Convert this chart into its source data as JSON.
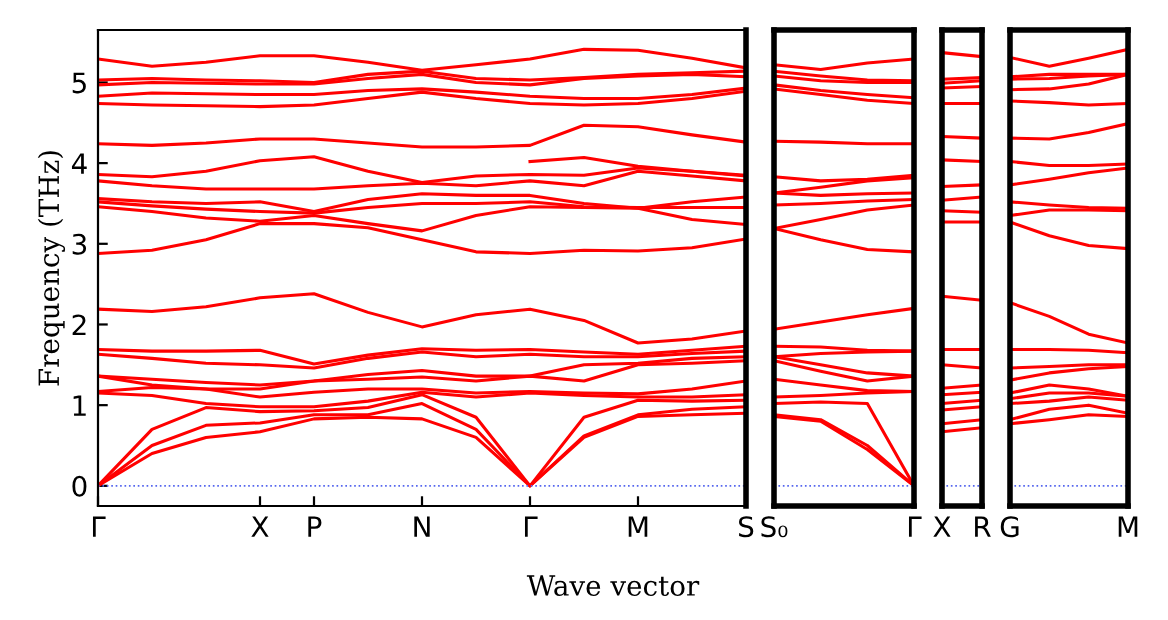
{
  "chart_data": [
    {
      "type": "line",
      "ylabel": "Frequency (THz)",
      "xlabel": "Wave vector",
      "ylim": [
        -0.25,
        5.65
      ],
      "yticks": [
        0,
        1,
        2,
        3,
        4,
        5
      ],
      "categories": [
        "Γ",
        null,
        null,
        "X",
        "P",
        null,
        "N",
        null,
        "Γ",
        null,
        "M",
        null,
        "S"
      ],
      "ref_lines": [
        {
          "axis": "y",
          "value": 0,
          "color": "#5566ee",
          "line_style": "dotted"
        }
      ],
      "series": [
        {
          "color": "#ff0000",
          "values": [
            0,
            0.4,
            0.6,
            0.67,
            0.83,
            0.85,
            0.83,
            0.6,
            0,
            0.6,
            0.86,
            0.88,
            0.9
          ]
        },
        {
          "color": "#ff0000",
          "values": [
            0,
            0.5,
            0.75,
            0.78,
            0.88,
            0.88,
            1.02,
            0.7,
            0,
            0.62,
            0.88,
            0.95,
            0.98
          ]
        },
        {
          "color": "#ff0000",
          "values": [
            0,
            0.7,
            0.97,
            0.92,
            0.93,
            0.97,
            1.13,
            0.85,
            0,
            0.85,
            1.06,
            1.05,
            1.06
          ]
        },
        {
          "color": "#ff0000",
          "values": [
            1.15,
            1.12,
            1.02,
            0.98,
            0.98,
            1.05,
            1.16,
            1.1,
            1.15,
            1.12,
            1.1,
            1.1,
            1.13
          ]
        },
        {
          "color": "#ff0000",
          "values": [
            1.17,
            1.22,
            1.2,
            1.1,
            1.16,
            1.2,
            1.2,
            1.15,
            1.17,
            1.15,
            1.14,
            1.2,
            1.3
          ]
        },
        {
          "color": "#ff0000",
          "values": [
            1.36,
            1.25,
            1.2,
            1.2,
            1.3,
            1.32,
            1.35,
            1.3,
            1.36,
            1.3,
            1.5,
            1.52,
            1.55
          ]
        },
        {
          "color": "#ff0000",
          "values": [
            1.36,
            1.32,
            1.28,
            1.25,
            1.3,
            1.38,
            1.43,
            1.36,
            1.36,
            1.5,
            1.52,
            1.58,
            1.6
          ]
        },
        {
          "color": "#ff0000",
          "values": [
            1.63,
            1.58,
            1.52,
            1.5,
            1.46,
            1.58,
            1.66,
            1.6,
            1.63,
            1.6,
            1.6,
            1.64,
            1.67
          ]
        },
        {
          "color": "#ff0000",
          "values": [
            1.69,
            1.67,
            1.67,
            1.68,
            1.51,
            1.62,
            1.7,
            1.68,
            1.69,
            1.66,
            1.63,
            1.68,
            1.73
          ]
        },
        {
          "color": "#ff0000",
          "values": [
            2.19,
            2.16,
            2.22,
            2.33,
            2.38,
            2.15,
            1.97,
            2.12,
            2.19,
            2.05,
            1.77,
            1.82,
            1.92
          ]
        },
        {
          "color": "#ff0000",
          "values": [
            2.88,
            2.92,
            3.05,
            3.25,
            3.25,
            3.2,
            3.05,
            2.9,
            2.88,
            2.92,
            2.91,
            2.95,
            3.06
          ]
        },
        {
          "color": "#ff0000",
          "values": [
            3.46,
            3.4,
            3.32,
            3.28,
            3.35,
            3.25,
            3.16,
            3.35,
            3.46,
            3.45,
            3.44,
            3.3,
            3.24
          ]
        },
        {
          "color": "#ff0000",
          "values": [
            3.52,
            3.47,
            3.43,
            3.4,
            3.38,
            3.45,
            3.5,
            3.5,
            3.52,
            3.46,
            3.45,
            3.45,
            3.45
          ]
        },
        {
          "color": "#ff0000",
          "values": [
            3.56,
            3.52,
            3.5,
            3.52,
            3.4,
            3.55,
            3.62,
            3.6,
            3.6,
            3.5,
            3.44,
            3.52,
            3.58
          ]
        },
        {
          "color": "#ff0000",
          "values": [
            3.78,
            3.72,
            3.68,
            3.68,
            3.68,
            3.72,
            3.75,
            3.72,
            3.78,
            3.72,
            3.9,
            3.84,
            3.78
          ]
        },
        {
          "color": "#ff0000",
          "values": [
            3.86,
            3.83,
            3.9,
            4.03,
            4.08,
            3.9,
            3.76,
            3.84,
            3.86,
            3.85,
            3.94,
            3.9,
            3.85
          ]
        },
        {
          "color": "#ff0000",
          "values": [
            4.24,
            4.22,
            4.25,
            4.3,
            4.3,
            4.25,
            4.2,
            4.2,
            4.22,
            4.47,
            4.45,
            4.35,
            4.26
          ]
        },
        {
          "color": "#ff0000",
          "values": [
            4.74,
            4.72,
            4.71,
            4.7,
            4.72,
            4.8,
            4.88,
            4.8,
            4.74,
            4.72,
            4.74,
            4.8,
            4.89
          ]
        },
        {
          "color": "#ff0000",
          "values": [
            4.83,
            4.87,
            4.86,
            4.85,
            4.85,
            4.9,
            4.92,
            4.88,
            4.83,
            4.8,
            4.8,
            4.85,
            4.93
          ]
        },
        {
          "color": "#ff0000",
          "values": [
            4.97,
            5.0,
            4.99,
            4.98,
            4.98,
            5.05,
            5.1,
            5.0,
            4.97,
            5.05,
            5.08,
            5.1,
            5.07
          ]
        },
        {
          "color": "#ff0000",
          "values": [
            5.03,
            5.05,
            5.03,
            5.02,
            5.0,
            5.1,
            5.14,
            5.05,
            5.03,
            5.06,
            5.1,
            5.12,
            5.14
          ]
        },
        {
          "color": "#ff0000",
          "values": [
            5.29,
            5.2,
            5.25,
            5.33,
            5.33,
            5.25,
            5.15,
            5.22,
            5.29,
            5.41,
            5.4,
            5.3,
            5.18
          ]
        },
        {
          "color": "#ff0000",
          "values": [
            null,
            null,
            null,
            null,
            null,
            null,
            null,
            null,
            4.02,
            4.07,
            3.96,
            3.9,
            3.84
          ]
        }
      ]
    },
    {
      "type": "line",
      "ylim": [
        -0.25,
        5.65
      ],
      "tick_labels": "x",
      "categories": [
        "S₀",
        null,
        null,
        "Γ"
      ],
      "ref_lines": [
        {
          "axis": "y",
          "value": 0,
          "color": "#5566ee",
          "line_style": "dotted"
        }
      ],
      "series": [
        {
          "color": "#ff0000",
          "values": [
            0.86,
            0.8,
            0.45,
            0
          ]
        },
        {
          "color": "#ff0000",
          "values": [
            0.88,
            0.82,
            0.5,
            0
          ]
        },
        {
          "color": "#ff0000",
          "values": [
            1.02,
            1.04,
            1.02,
            0
          ]
        },
        {
          "color": "#ff0000",
          "values": [
            1.1,
            1.12,
            1.15,
            1.17
          ]
        },
        {
          "color": "#ff0000",
          "values": [
            1.32,
            1.25,
            1.18,
            1.17
          ]
        },
        {
          "color": "#ff0000",
          "values": [
            1.55,
            1.42,
            1.3,
            1.36
          ]
        },
        {
          "color": "#ff0000",
          "values": [
            1.6,
            1.5,
            1.4,
            1.36
          ]
        },
        {
          "color": "#ff0000",
          "values": [
            1.6,
            1.64,
            1.66,
            1.67
          ]
        },
        {
          "color": "#ff0000",
          "values": [
            1.73,
            1.72,
            1.68,
            1.67
          ]
        },
        {
          "color": "#ff0000",
          "values": [
            1.94,
            2.03,
            2.12,
            2.2
          ]
        },
        {
          "color": "#ff0000",
          "values": [
            3.19,
            3.05,
            2.93,
            2.9
          ]
        },
        {
          "color": "#ff0000",
          "values": [
            3.19,
            3.3,
            3.42,
            3.48
          ]
        },
        {
          "color": "#ff0000",
          "values": [
            3.48,
            3.5,
            3.53,
            3.55
          ]
        },
        {
          "color": "#ff0000",
          "values": [
            3.63,
            3.6,
            3.62,
            3.63
          ]
        },
        {
          "color": "#ff0000",
          "values": [
            3.63,
            3.7,
            3.78,
            3.82
          ]
        },
        {
          "color": "#ff0000",
          "values": [
            3.83,
            3.78,
            3.8,
            3.85
          ]
        },
        {
          "color": "#ff0000",
          "values": [
            4.27,
            4.26,
            4.24,
            4.24
          ]
        },
        {
          "color": "#ff0000",
          "values": [
            4.92,
            4.85,
            4.78,
            4.74
          ]
        },
        {
          "color": "#ff0000",
          "values": [
            4.97,
            4.9,
            4.85,
            4.81
          ]
        },
        {
          "color": "#ff0000",
          "values": [
            5.08,
            5.02,
            5.0,
            5.0
          ]
        },
        {
          "color": "#ff0000",
          "values": [
            5.14,
            5.08,
            5.03,
            5.02
          ]
        },
        {
          "color": "#ff0000",
          "values": [
            5.22,
            5.16,
            5.24,
            5.29
          ]
        }
      ]
    },
    {
      "type": "line",
      "ylim": [
        -0.25,
        5.65
      ],
      "tick_labels": "x",
      "categories": [
        "X",
        "R"
      ],
      "ref_lines": [
        {
          "axis": "y",
          "value": 0,
          "color": "#5566ee",
          "line_style": "dotted"
        }
      ],
      "series": [
        {
          "color": "#ff0000",
          "values": [
            0.67,
            0.72
          ]
        },
        {
          "color": "#ff0000",
          "values": [
            0.77,
            0.82
          ]
        },
        {
          "color": "#ff0000",
          "values": [
            0.94,
            0.98
          ]
        },
        {
          "color": "#ff0000",
          "values": [
            1.02,
            1.06
          ]
        },
        {
          "color": "#ff0000",
          "values": [
            1.13,
            1.16
          ]
        },
        {
          "color": "#ff0000",
          "values": [
            1.21,
            1.25
          ]
        },
        {
          "color": "#ff0000",
          "values": [
            1.5,
            1.46
          ]
        },
        {
          "color": "#ff0000",
          "values": [
            1.69,
            1.69
          ]
        },
        {
          "color": "#ff0000",
          "values": [
            2.35,
            2.3
          ]
        },
        {
          "color": "#ff0000",
          "values": [
            3.27,
            3.27
          ]
        },
        {
          "color": "#ff0000",
          "values": [
            3.41,
            3.39
          ]
        },
        {
          "color": "#ff0000",
          "values": [
            3.54,
            3.58
          ]
        },
        {
          "color": "#ff0000",
          "values": [
            3.71,
            3.73
          ]
        },
        {
          "color": "#ff0000",
          "values": [
            4.04,
            4.02
          ]
        },
        {
          "color": "#ff0000",
          "values": [
            4.33,
            4.31
          ]
        },
        {
          "color": "#ff0000",
          "values": [
            4.74,
            4.74
          ]
        },
        {
          "color": "#ff0000",
          "values": [
            4.93,
            4.95
          ]
        },
        {
          "color": "#ff0000",
          "values": [
            4.99,
            5.02
          ]
        },
        {
          "color": "#ff0000",
          "values": [
            5.04,
            5.06
          ]
        },
        {
          "color": "#ff0000",
          "values": [
            5.37,
            5.32
          ]
        }
      ]
    },
    {
      "type": "line",
      "ylim": [
        -0.25,
        5.65
      ],
      "tick_labels": "x",
      "categories": [
        "G",
        null,
        null,
        "M"
      ],
      "ref_lines": [
        {
          "axis": "y",
          "value": 0,
          "color": "#5566ee",
          "line_style": "dotted"
        }
      ],
      "series": [
        {
          "color": "#ff0000",
          "values": [
            0.77,
            0.82,
            0.88,
            0.86
          ]
        },
        {
          "color": "#ff0000",
          "values": [
            0.82,
            0.95,
            1.0,
            0.9
          ]
        },
        {
          "color": "#ff0000",
          "values": [
            1.02,
            1.05,
            1.1,
            1.06
          ]
        },
        {
          "color": "#ff0000",
          "values": [
            1.08,
            1.15,
            1.15,
            1.11
          ]
        },
        {
          "color": "#ff0000",
          "values": [
            1.15,
            1.25,
            1.2,
            1.11
          ]
        },
        {
          "color": "#ff0000",
          "values": [
            1.31,
            1.4,
            1.45,
            1.48
          ]
        },
        {
          "color": "#ff0000",
          "values": [
            1.46,
            1.48,
            1.5,
            1.5
          ]
        },
        {
          "color": "#ff0000",
          "values": [
            1.69,
            1.69,
            1.68,
            1.65
          ]
        },
        {
          "color": "#ff0000",
          "values": [
            2.27,
            2.1,
            1.88,
            1.77
          ]
        },
        {
          "color": "#ff0000",
          "values": [
            3.27,
            3.1,
            2.98,
            2.94
          ]
        },
        {
          "color": "#ff0000",
          "values": [
            3.35,
            3.42,
            3.42,
            3.41
          ]
        },
        {
          "color": "#ff0000",
          "values": [
            3.52,
            3.48,
            3.45,
            3.44
          ]
        },
        {
          "color": "#ff0000",
          "values": [
            3.73,
            3.8,
            3.88,
            3.94
          ]
        },
        {
          "color": "#ff0000",
          "values": [
            4.02,
            3.97,
            3.97,
            3.99
          ]
        },
        {
          "color": "#ff0000",
          "values": [
            4.31,
            4.3,
            4.38,
            4.49
          ]
        },
        {
          "color": "#ff0000",
          "values": [
            4.77,
            4.75,
            4.72,
            4.74
          ]
        },
        {
          "color": "#ff0000",
          "values": [
            4.91,
            4.92,
            4.98,
            5.1
          ]
        },
        {
          "color": "#ff0000",
          "values": [
            5.04,
            5.05,
            5.08,
            5.1
          ]
        },
        {
          "color": "#ff0000",
          "values": [
            5.07,
            5.1,
            5.1,
            5.1
          ]
        },
        {
          "color": "#ff0000",
          "values": [
            5.31,
            5.2,
            5.3,
            5.41
          ]
        }
      ]
    }
  ]
}
